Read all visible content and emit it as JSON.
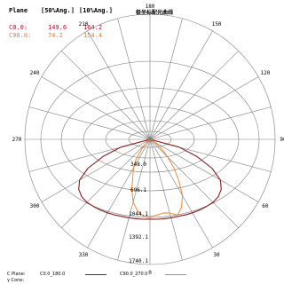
{
  "table": {
    "headers": [
      "Plane",
      "[50%Ang.]",
      "[10%Ang.]"
    ],
    "rows": [
      {
        "plane": "C0.0:",
        "ang50": "149.6",
        "ang10": "164.2",
        "color": "#d2001e"
      },
      {
        "plane": "C90.0:",
        "ang50": "74.2",
        "ang10": "154.4",
        "color": "#f07a1e"
      }
    ]
  },
  "chart_data": {
    "type": "polar",
    "title": "极坐标配光曲线",
    "angle_labels": [
      "180",
      "150",
      "120",
      "90",
      "60",
      "30",
      "0",
      "330",
      "300",
      "270",
      "240",
      "210"
    ],
    "radial_labels": [
      "348.0",
      "696.1",
      "1044.1",
      "1392.1",
      "1740.1"
    ],
    "radial_max": 1740.1,
    "grid": true,
    "series": [
      {
        "name": "C0.0_180.0",
        "color": "#8b1a1a",
        "points": [
          [
            -104,
            0
          ],
          [
            -100,
            3
          ],
          [
            -95,
            5
          ],
          [
            -90,
            5
          ],
          [
            -85,
            5
          ],
          [
            -80,
            5
          ],
          [
            -75,
            420
          ],
          [
            -70,
            690
          ],
          [
            -65,
            950
          ],
          [
            -60,
            1130
          ],
          [
            -55,
            1210
          ],
          [
            -50,
            1240
          ],
          [
            -45,
            1240
          ],
          [
            -40,
            1220
          ],
          [
            -35,
            1200
          ],
          [
            -30,
            1180
          ],
          [
            -25,
            1160
          ],
          [
            -20,
            1140
          ],
          [
            -15,
            1130
          ],
          [
            -10,
            1120
          ],
          [
            -5,
            1115
          ],
          [
            0,
            1110
          ],
          [
            5,
            1115
          ],
          [
            10,
            1120
          ],
          [
            15,
            1130
          ],
          [
            20,
            1140
          ],
          [
            25,
            1160
          ],
          [
            30,
            1180
          ],
          [
            35,
            1200
          ],
          [
            40,
            1220
          ],
          [
            45,
            1240
          ],
          [
            50,
            1240
          ],
          [
            55,
            1210
          ],
          [
            60,
            1130
          ],
          [
            65,
            950
          ],
          [
            70,
            690
          ],
          [
            75,
            420
          ],
          [
            80,
            5
          ],
          [
            85,
            5
          ],
          [
            90,
            5
          ],
          [
            95,
            5
          ],
          [
            100,
            3
          ],
          [
            104,
            0
          ]
        ]
      },
      {
        "name": "C90.0_270.0",
        "color": "#f07a1e",
        "points": [
          [
            -90,
            0
          ],
          [
            -80,
            3
          ],
          [
            -70,
            10
          ],
          [
            -60,
            25
          ],
          [
            -50,
            55
          ],
          [
            -40,
            175
          ],
          [
            -35,
            340
          ],
          [
            -30,
            460
          ],
          [
            -25,
            560
          ],
          [
            -20,
            740
          ],
          [
            -15,
            900
          ],
          [
            -10,
            1010
          ],
          [
            -5,
            1070
          ],
          [
            0,
            1075
          ],
          [
            5,
            1060
          ],
          [
            10,
            1040
          ],
          [
            15,
            1060
          ],
          [
            20,
            1120
          ],
          [
            25,
            1040
          ],
          [
            30,
            900
          ],
          [
            35,
            700
          ],
          [
            40,
            520
          ],
          [
            45,
            350
          ],
          [
            50,
            220
          ],
          [
            55,
            130
          ],
          [
            60,
            60
          ],
          [
            65,
            25
          ],
          [
            70,
            10
          ],
          [
            75,
            5
          ],
          [
            80,
            3
          ],
          [
            90,
            0
          ]
        ]
      }
    ]
  },
  "footer": {
    "c_plane_label": "C Plane:",
    "gamma_label": "γ Cone:",
    "legend": [
      "C0.0_180.0",
      "C90.0_270.0"
    ]
  }
}
